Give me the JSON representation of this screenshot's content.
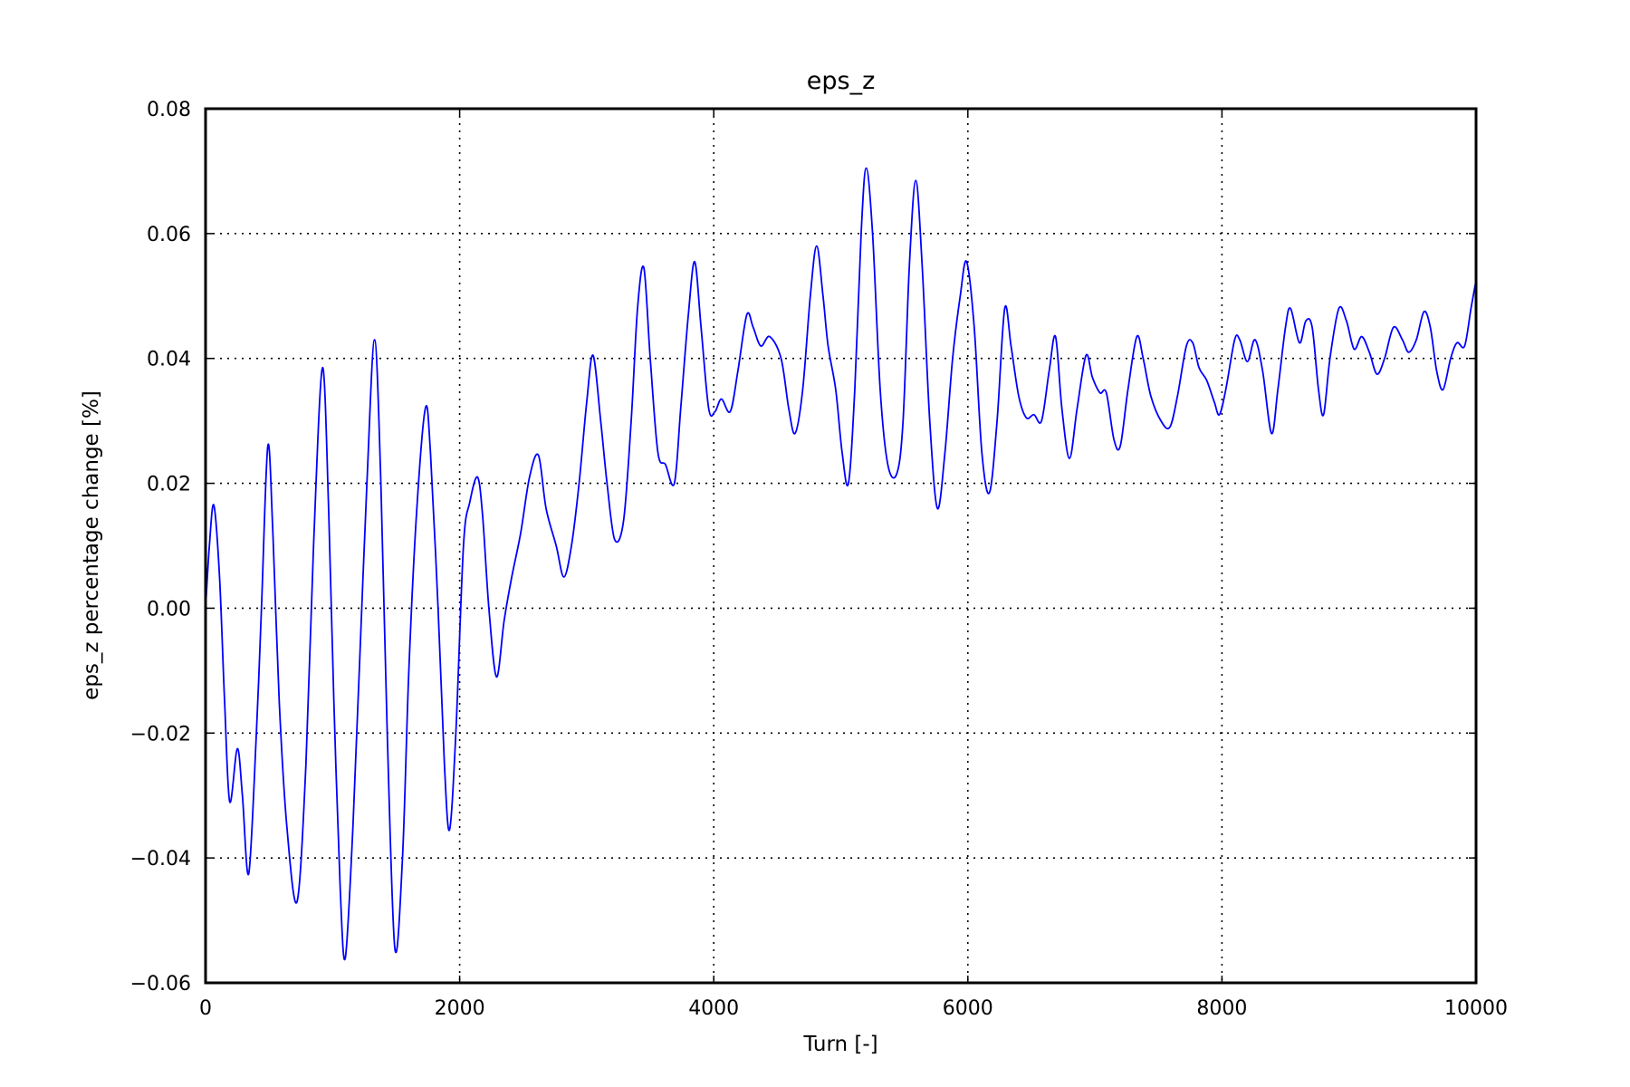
{
  "chart_data": {
    "type": "line",
    "title": "eps_z",
    "xlabel": "Turn [-]",
    "ylabel": "eps_z percentage change [%]",
    "xlim": [
      0,
      10000
    ],
    "ylim": [
      -0.06,
      0.08
    ],
    "grid": true,
    "legend": "none",
    "x_ticks": [
      0,
      2000,
      4000,
      6000,
      8000,
      10000
    ],
    "x_tick_labels": [
      "0",
      "2000",
      "4000",
      "6000",
      "8000",
      "10000"
    ],
    "y_ticks": [
      -0.06,
      -0.04,
      -0.02,
      0.0,
      0.02,
      0.04,
      0.06,
      0.08
    ],
    "y_tick_labels": [
      "−0.06",
      "−0.04",
      "−0.02",
      "0.00",
      "0.02",
      "0.04",
      "0.06",
      "0.08"
    ],
    "series": [
      {
        "color": "#0000ff",
        "points": [
          [
            0,
            0.0
          ],
          [
            30,
            0.01
          ],
          [
            65,
            0.0165
          ],
          [
            110,
            0.005
          ],
          [
            150,
            -0.015
          ],
          [
            190,
            -0.031
          ],
          [
            250,
            -0.0225
          ],
          [
            290,
            -0.03
          ],
          [
            340,
            -0.0425
          ],
          [
            400,
            -0.02
          ],
          [
            440,
            0.0
          ],
          [
            490,
            0.026
          ],
          [
            530,
            0.012
          ],
          [
            580,
            -0.015
          ],
          [
            640,
            -0.035
          ],
          [
            720,
            -0.047
          ],
          [
            790,
            -0.025
          ],
          [
            850,
            0.01
          ],
          [
            920,
            0.0385
          ],
          [
            970,
            0.015
          ],
          [
            1010,
            -0.015
          ],
          [
            1060,
            -0.045
          ],
          [
            1100,
            -0.056
          ],
          [
            1160,
            -0.035
          ],
          [
            1210,
            -0.01
          ],
          [
            1270,
            0.02
          ],
          [
            1330,
            0.043
          ],
          [
            1380,
            0.02
          ],
          [
            1430,
            -0.02
          ],
          [
            1490,
            -0.0545
          ],
          [
            1550,
            -0.04
          ],
          [
            1600,
            -0.01
          ],
          [
            1660,
            0.015
          ],
          [
            1730,
            0.032
          ],
          [
            1770,
            0.025
          ],
          [
            1830,
            0.0
          ],
          [
            1880,
            -0.025
          ],
          [
            1920,
            -0.0355
          ],
          [
            1970,
            -0.02
          ],
          [
            2030,
            0.01
          ],
          [
            2080,
            0.017
          ],
          [
            2140,
            0.021
          ],
          [
            2180,
            0.015
          ],
          [
            2230,
            0.0
          ],
          [
            2290,
            -0.011
          ],
          [
            2350,
            -0.002
          ],
          [
            2410,
            0.005
          ],
          [
            2480,
            0.012
          ],
          [
            2550,
            0.021
          ],
          [
            2620,
            0.0245
          ],
          [
            2680,
            0.016
          ],
          [
            2760,
            0.01
          ],
          [
            2820,
            0.005
          ],
          [
            2880,
            0.01
          ],
          [
            2940,
            0.02
          ],
          [
            3000,
            0.033
          ],
          [
            3050,
            0.0405
          ],
          [
            3110,
            0.03
          ],
          [
            3160,
            0.02
          ],
          [
            3220,
            0.011
          ],
          [
            3290,
            0.014
          ],
          [
            3350,
            0.03
          ],
          [
            3400,
            0.048
          ],
          [
            3450,
            0.0545
          ],
          [
            3500,
            0.04
          ],
          [
            3560,
            0.025
          ],
          [
            3620,
            0.023
          ],
          [
            3690,
            0.02
          ],
          [
            3740,
            0.032
          ],
          [
            3800,
            0.047
          ],
          [
            3850,
            0.0555
          ],
          [
            3900,
            0.045
          ],
          [
            3960,
            0.032
          ],
          [
            4010,
            0.0315
          ],
          [
            4060,
            0.0335
          ],
          [
            4130,
            0.0315
          ],
          [
            4190,
            0.038
          ],
          [
            4260,
            0.047
          ],
          [
            4310,
            0.045
          ],
          [
            4370,
            0.042
          ],
          [
            4440,
            0.0435
          ],
          [
            4530,
            0.04
          ],
          [
            4590,
            0.032
          ],
          [
            4640,
            0.028
          ],
          [
            4700,
            0.035
          ],
          [
            4760,
            0.05
          ],
          [
            4810,
            0.058
          ],
          [
            4860,
            0.05
          ],
          [
            4900,
            0.042
          ],
          [
            4960,
            0.035
          ],
          [
            5010,
            0.025
          ],
          [
            5060,
            0.02
          ],
          [
            5110,
            0.035
          ],
          [
            5160,
            0.06
          ],
          [
            5200,
            0.0705
          ],
          [
            5250,
            0.06
          ],
          [
            5310,
            0.035
          ],
          [
            5370,
            0.023
          ],
          [
            5440,
            0.0215
          ],
          [
            5490,
            0.03
          ],
          [
            5540,
            0.055
          ],
          [
            5590,
            0.0685
          ],
          [
            5640,
            0.055
          ],
          [
            5700,
            0.03
          ],
          [
            5760,
            0.016
          ],
          [
            5820,
            0.025
          ],
          [
            5880,
            0.04
          ],
          [
            5940,
            0.05
          ],
          [
            5990,
            0.0555
          ],
          [
            6050,
            0.045
          ],
          [
            6110,
            0.025
          ],
          [
            6170,
            0.0185
          ],
          [
            6230,
            0.03
          ],
          [
            6290,
            0.048
          ],
          [
            6340,
            0.042
          ],
          [
            6400,
            0.034
          ],
          [
            6460,
            0.0305
          ],
          [
            6520,
            0.031
          ],
          [
            6580,
            0.03
          ],
          [
            6640,
            0.038
          ],
          [
            6690,
            0.0435
          ],
          [
            6740,
            0.032
          ],
          [
            6800,
            0.024
          ],
          [
            6860,
            0.032
          ],
          [
            6930,
            0.0405
          ],
          [
            6980,
            0.037
          ],
          [
            7040,
            0.0345
          ],
          [
            7090,
            0.0345
          ],
          [
            7150,
            0.027
          ],
          [
            7200,
            0.026
          ],
          [
            7260,
            0.035
          ],
          [
            7330,
            0.0435
          ],
          [
            7380,
            0.04
          ],
          [
            7440,
            0.034
          ],
          [
            7520,
            0.03
          ],
          [
            7590,
            0.029
          ],
          [
            7650,
            0.034
          ],
          [
            7720,
            0.042
          ],
          [
            7770,
            0.0425
          ],
          [
            7820,
            0.0385
          ],
          [
            7880,
            0.0365
          ],
          [
            7940,
            0.033
          ],
          [
            7980,
            0.031
          ],
          [
            8030,
            0.035
          ],
          [
            8100,
            0.043
          ],
          [
            8140,
            0.043
          ],
          [
            8200,
            0.0395
          ],
          [
            8260,
            0.043
          ],
          [
            8320,
            0.038
          ],
          [
            8390,
            0.028
          ],
          [
            8440,
            0.035
          ],
          [
            8500,
            0.045
          ],
          [
            8540,
            0.048
          ],
          [
            8610,
            0.0425
          ],
          [
            8660,
            0.046
          ],
          [
            8710,
            0.045
          ],
          [
            8760,
            0.035
          ],
          [
            8800,
            0.031
          ],
          [
            8850,
            0.04
          ],
          [
            8920,
            0.048
          ],
          [
            8980,
            0.046
          ],
          [
            9040,
            0.0415
          ],
          [
            9100,
            0.0435
          ],
          [
            9160,
            0.041
          ],
          [
            9220,
            0.0375
          ],
          [
            9280,
            0.04
          ],
          [
            9350,
            0.045
          ],
          [
            9420,
            0.043
          ],
          [
            9470,
            0.041
          ],
          [
            9530,
            0.043
          ],
          [
            9590,
            0.0475
          ],
          [
            9640,
            0.045
          ],
          [
            9690,
            0.038
          ],
          [
            9740,
            0.035
          ],
          [
            9800,
            0.04
          ],
          [
            9850,
            0.0425
          ],
          [
            9910,
            0.042
          ],
          [
            9960,
            0.048
          ],
          [
            10000,
            0.0525
          ]
        ]
      }
    ]
  }
}
